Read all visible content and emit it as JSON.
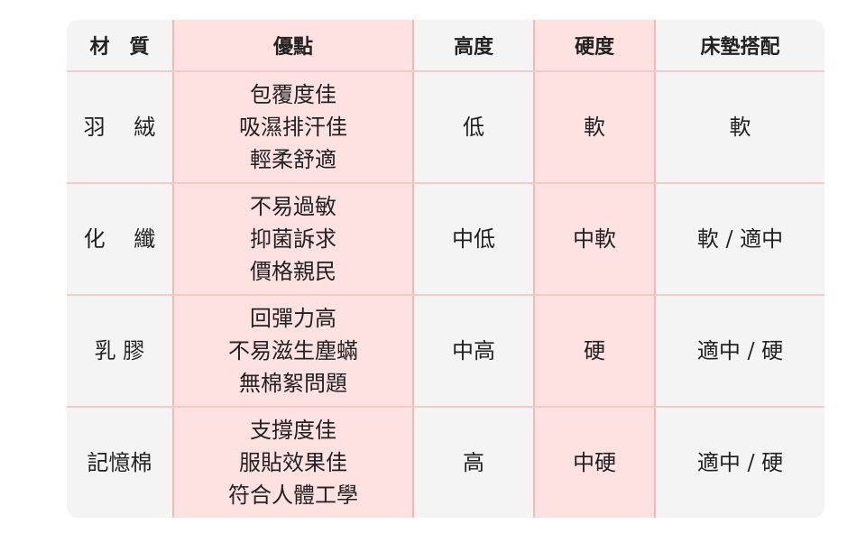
{
  "headers": [
    "材　質",
    "優點",
    "高度",
    "硬度",
    "床墊搭配"
  ],
  "rows": [
    {
      "material": "羽　 絨",
      "advantages": [
        "包覆度佳",
        "吸濕排汗佳",
        "輕柔舒適"
      ],
      "height": "低",
      "firmness": "軟",
      "mattress": "軟"
    },
    {
      "material": "化　 纖",
      "advantages": [
        "不易過敏",
        "抑菌訴求",
        "價格親民"
      ],
      "height": "中低",
      "firmness": "中軟",
      "mattress": "軟 / 適中"
    },
    {
      "material": "乳 膠",
      "advantages": [
        "回彈力高",
        "不易滋生塵蟎",
        "無棉絮問題"
      ],
      "height": "中高",
      "firmness": "硬",
      "mattress": "適中 / 硬"
    },
    {
      "material": "記憶棉",
      "advantages": [
        "支撐度佳",
        "服貼效果佳",
        "符合人體工學"
      ],
      "height": "高",
      "firmness": "中硬",
      "mattress": "適中 / 硬"
    }
  ],
  "colors": {
    "background": "#f4f4f4",
    "highlight": "#fde2e1",
    "border": "#f4b9b5"
  }
}
